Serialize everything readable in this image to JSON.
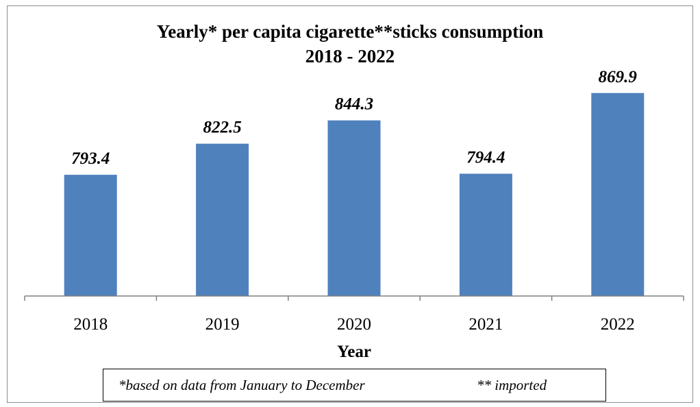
{
  "chart_data": {
    "type": "bar",
    "title": "Yearly* per capita cigarette**sticks consumption",
    "subtitle": "2018 - 2022",
    "xlabel": "Year",
    "ylabel": "",
    "categories": [
      "2018",
      "2019",
      "2020",
      "2021",
      "2022"
    ],
    "values": [
      793.4,
      822.5,
      844.3,
      794.4,
      869.9
    ],
    "value_labels": [
      "793.4",
      "822.5",
      "844.3",
      "794.4",
      "869.9"
    ],
    "ylim": [
      680,
      880
    ],
    "grid": false,
    "bar_color": "#4f81bd"
  },
  "footnotes": {
    "left": "*based on data from January to December",
    "right": "** imported"
  }
}
